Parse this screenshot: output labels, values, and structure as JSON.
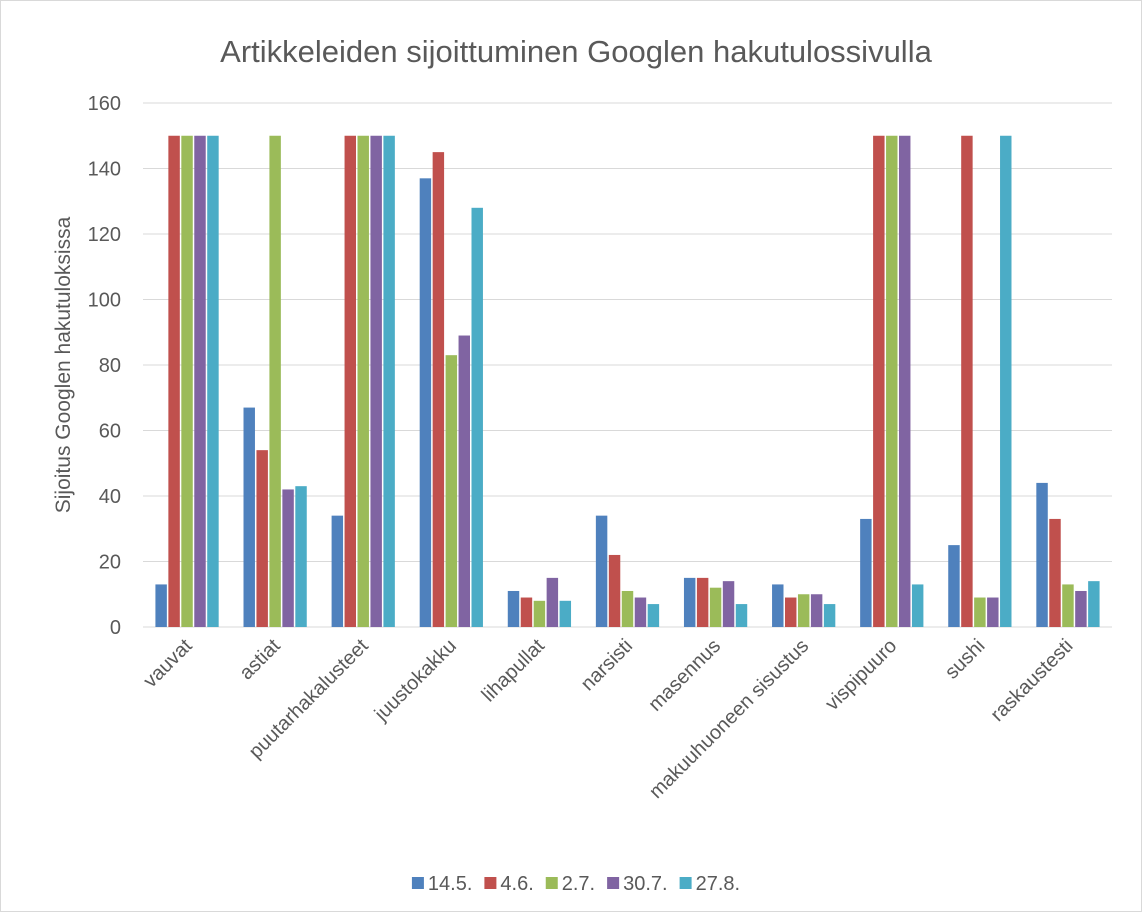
{
  "chart_data": {
    "type": "bar",
    "title": "Artikkeleiden sijoittuminen Googlen hakutulossivulla",
    "y_label": "Sijoitus Googlen hakutuloksissa",
    "categories": [
      "vauvat",
      "astiat",
      "puutarhakalusteet",
      "juustokakku",
      "lihapullat",
      "narsisti",
      "masennus",
      "makuuhuoneen sisustus",
      "vispipuuro",
      "sushi",
      "raskaustesti"
    ],
    "series": [
      {
        "name": "14.5.",
        "color": "#4f81bd",
        "values": [
          13,
          67,
          34,
          137,
          11,
          34,
          15,
          13,
          33,
          25,
          44
        ]
      },
      {
        "name": "4.6.",
        "color": "#c0504d",
        "values": [
          150,
          54,
          150,
          145,
          9,
          22,
          15,
          9,
          150,
          150,
          33
        ]
      },
      {
        "name": "2.7.",
        "color": "#9bbb59",
        "values": [
          150,
          150,
          150,
          83,
          8,
          11,
          12,
          10,
          150,
          9,
          13
        ]
      },
      {
        "name": "30.7.",
        "color": "#8064a2",
        "values": [
          150,
          42,
          150,
          89,
          15,
          9,
          14,
          10,
          150,
          9,
          11
        ]
      },
      {
        "name": "27.8.",
        "color": "#4bacc6",
        "values": [
          150,
          43,
          150,
          128,
          8,
          7,
          7,
          7,
          13,
          150,
          14
        ]
      }
    ],
    "ylim": [
      0,
      160
    ],
    "yticks": [
      0,
      20,
      40,
      60,
      80,
      100,
      120,
      140,
      160
    ],
    "grid": true,
    "legend": "bottom"
  }
}
